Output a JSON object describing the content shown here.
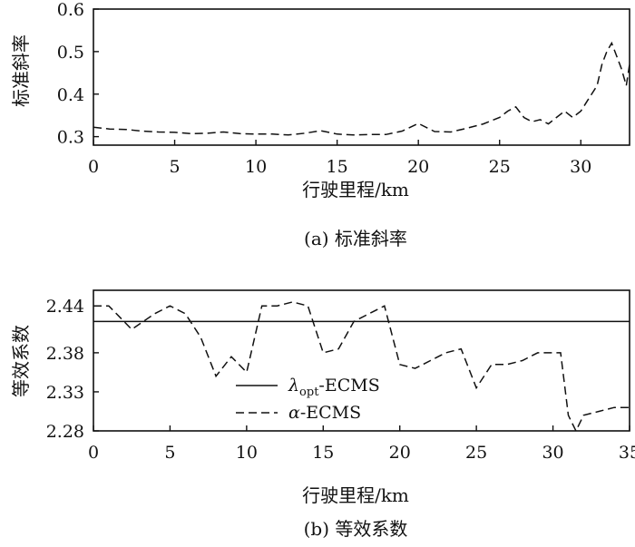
{
  "chart_data": [
    {
      "type": "line",
      "caption": "(a) 标准斜率",
      "xlabel": "行驶里程/km",
      "ylabel": "标准斜率",
      "xlim": [
        0,
        33
      ],
      "ylim": [
        0.28,
        0.6
      ],
      "xticks": [
        "0",
        "5",
        "10",
        "15",
        "20",
        "25",
        "30"
      ],
      "xtick_values": [
        0,
        5,
        10,
        15,
        20,
        25,
        30
      ],
      "yticks": [
        "0.3",
        "0.4",
        "0.5",
        "0.6"
      ],
      "ytick_values": [
        0.3,
        0.4,
        0.5,
        0.6
      ],
      "grid": false,
      "series": [
        {
          "style": "dashed",
          "x": [
            0,
            1,
            2,
            3,
            4,
            5,
            6,
            7,
            8,
            9,
            10,
            11,
            12,
            13,
            14,
            15,
            16,
            17,
            18,
            19,
            20,
            21,
            22,
            23,
            24,
            25,
            25.5,
            26,
            26.5,
            27,
            27.5,
            28,
            28.5,
            29,
            29.5,
            30,
            30.5,
            31,
            31.3,
            31.6,
            31.9,
            32.2,
            32.5,
            32.8,
            33
          ],
          "y": [
            0.322,
            0.318,
            0.317,
            0.313,
            0.311,
            0.31,
            0.307,
            0.308,
            0.311,
            0.307,
            0.306,
            0.306,
            0.304,
            0.308,
            0.314,
            0.306,
            0.304,
            0.305,
            0.305,
            0.313,
            0.331,
            0.312,
            0.311,
            0.32,
            0.33,
            0.345,
            0.36,
            0.37,
            0.345,
            0.335,
            0.34,
            0.33,
            0.345,
            0.36,
            0.345,
            0.36,
            0.39,
            0.42,
            0.47,
            0.5,
            0.52,
            0.49,
            0.46,
            0.42,
            0.47
          ]
        }
      ]
    },
    {
      "type": "line",
      "caption": "(b) 等效系数",
      "xlabel": "行驶里程/km",
      "ylabel": "等效系数",
      "xlim": [
        0,
        35
      ],
      "ylim": [
        2.28,
        2.46
      ],
      "xticks": [
        "0",
        "5",
        "10",
        "15",
        "20",
        "25",
        "30",
        "35"
      ],
      "xtick_values": [
        0,
        5,
        10,
        15,
        20,
        25,
        30,
        35
      ],
      "yticks": [
        "2.28",
        "2.33",
        "2.38",
        "2.44"
      ],
      "ytick_values": [
        2.28,
        2.33,
        2.38,
        2.44
      ],
      "grid": false,
      "legend_position": "lower-left",
      "series": [
        {
          "name": "λopt-ECMS",
          "legend_main": "λ",
          "legend_sub": "opt",
          "legend_rest": "-ECMS",
          "style": "solid",
          "x": [
            0,
            35
          ],
          "y": [
            2.42,
            2.42
          ]
        },
        {
          "name": "α-ECMS",
          "legend_main": "α",
          "legend_sub": "",
          "legend_rest": "-ECMS",
          "style": "dashed",
          "x": [
            0,
            1,
            2.5,
            4,
            5,
            6,
            7,
            8,
            9,
            10,
            11,
            12,
            13,
            14,
            15,
            16,
            17,
            18,
            19,
            20,
            21,
            22,
            23,
            24,
            25,
            26,
            27,
            28,
            29,
            30,
            30.5,
            31,
            31.5,
            32,
            33,
            34,
            35
          ],
          "y": [
            2.44,
            2.44,
            2.41,
            2.43,
            2.44,
            2.43,
            2.4,
            2.35,
            2.375,
            2.355,
            2.44,
            2.44,
            2.445,
            2.44,
            2.38,
            2.385,
            2.42,
            2.43,
            2.44,
            2.365,
            2.36,
            2.37,
            2.38,
            2.385,
            2.335,
            2.365,
            2.365,
            2.37,
            2.38,
            2.38,
            2.38,
            2.3,
            2.28,
            2.3,
            2.305,
            2.31,
            2.31
          ]
        }
      ]
    }
  ]
}
